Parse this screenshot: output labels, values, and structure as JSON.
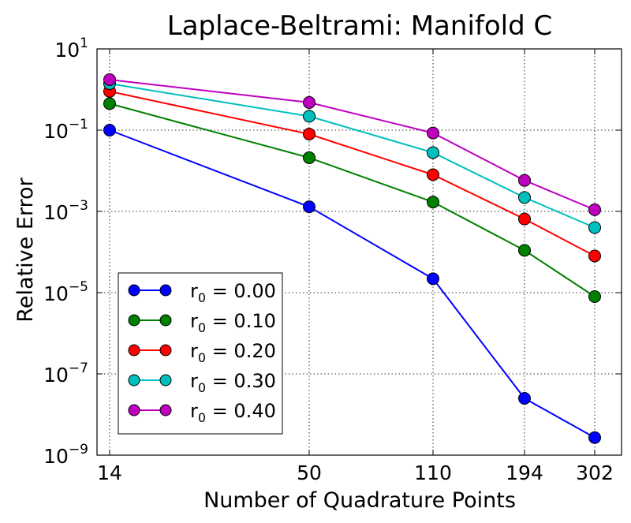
{
  "chart_data": {
    "type": "line",
    "title": "Laplace-Beltrami: Manifold C",
    "xlabel": "Number of Quadrature Points",
    "ylabel": "Relative Error",
    "x_scale": "categorical",
    "y_scale": "log",
    "categories": [
      "14",
      "50",
      "110",
      "194",
      "302"
    ],
    "ylim": [
      1e-09,
      10
    ],
    "y_ticks": [
      {
        "base": "10",
        "exp": "1"
      },
      {
        "base": "10",
        "exp": "−1"
      },
      {
        "base": "10",
        "exp": "−3"
      },
      {
        "base": "10",
        "exp": "−5"
      },
      {
        "base": "10",
        "exp": "−7"
      },
      {
        "base": "10",
        "exp": "−9"
      }
    ],
    "grid": true,
    "legend_position": "lower-left",
    "series": [
      {
        "name": "r0 = 0.00",
        "prefix": "r",
        "sub": "0",
        "value_text": " = 0.00",
        "color": "#0000ff",
        "values": [
          0.1,
          0.0013,
          2.2e-05,
          2.5e-08,
          2.7e-09
        ]
      },
      {
        "name": "r0 = 0.10",
        "prefix": "r",
        "sub": "0",
        "value_text": " = 0.10",
        "color": "#008000",
        "values": [
          0.45,
          0.021,
          0.0017,
          0.00011,
          8e-06
        ]
      },
      {
        "name": "r0 = 0.20",
        "prefix": "r",
        "sub": "0",
        "value_text": " = 0.20",
        "color": "#ff0000",
        "values": [
          0.9,
          0.08,
          0.008,
          0.00065,
          8e-05
        ]
      },
      {
        "name": "r0 = 0.30",
        "prefix": "r",
        "sub": "0",
        "value_text": " = 0.30",
        "color": "#00bfbf",
        "values": [
          1.4,
          0.22,
          0.028,
          0.0022,
          0.0004
        ]
      },
      {
        "name": "r0 = 0.40",
        "prefix": "r",
        "sub": "0",
        "value_text": " = 0.40",
        "color": "#bf00bf",
        "values": [
          1.75,
          0.48,
          0.085,
          0.0058,
          0.0011
        ]
      }
    ]
  }
}
